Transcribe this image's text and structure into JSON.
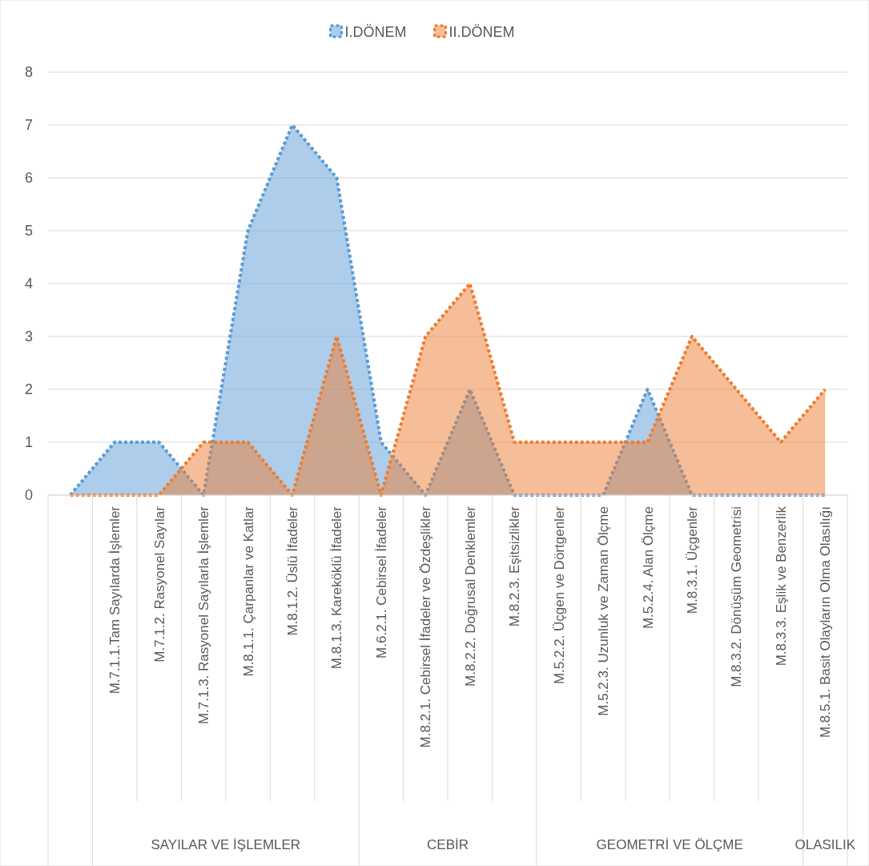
{
  "chart_data": {
    "type": "area",
    "categories": [
      null,
      "M.7.1.1.Tam Sayılarda İşlemler",
      "M.7.1.2. Rasyonel Sayılar",
      "M.7.1.3. Rasyonel Sayılarla İşlemler",
      "M.8.1.1. Çarpanlar ve Katlar",
      "M.8.1.2. Üslü İfadeler",
      "M.8.1.3. Kareköklü İfadeler",
      "M.6.2.1. Cebirsel İfadeler",
      "M.8.2.1. Cebirsel İfadeler ve Özdeşlikler",
      "M.8.2.2. Doğrusal Denklemler",
      "M.8.2.3. Eşitsizlikler",
      "M.5.2.2. Üçgen ve Dörtgenler",
      "M.5.2.3. Uzunluk ve Zaman Ölçme",
      "M.5.2.4. Alan Ölçme",
      "M.8.3.1. Üçgenler",
      "M.8.3.2. Dönüşüm Geometrisi",
      "M.8.3.3. Eşlik ve Benzerlik",
      "M.8.5.1. Basit Olayların Olma Olasılığı"
    ],
    "series": [
      {
        "name": "I.DÖNEM",
        "color": "#5b9bd5",
        "values": [
          0,
          1,
          1,
          0,
          5,
          7,
          6,
          1,
          0,
          2,
          0,
          0,
          0,
          2,
          0,
          0,
          0,
          0
        ]
      },
      {
        "name": "II.DÖNEM",
        "color": "#ed7d31",
        "values": [
          0,
          0,
          0,
          1,
          1,
          0,
          3,
          0,
          3,
          4,
          1,
          1,
          1,
          1,
          3,
          2,
          1,
          2
        ]
      }
    ],
    "ylim": [
      0,
      8
    ],
    "yticks": [
      0,
      1,
      2,
      3,
      4,
      5,
      6,
      7,
      8
    ],
    "grid": "y",
    "legend": "top",
    "line_style": "dotted",
    "annotations": [
      "SAYILAR VE İŞLEMLER",
      "CEBİR",
      "GEOMETRİ VE ÖLÇME",
      "OLASILIK"
    ]
  }
}
